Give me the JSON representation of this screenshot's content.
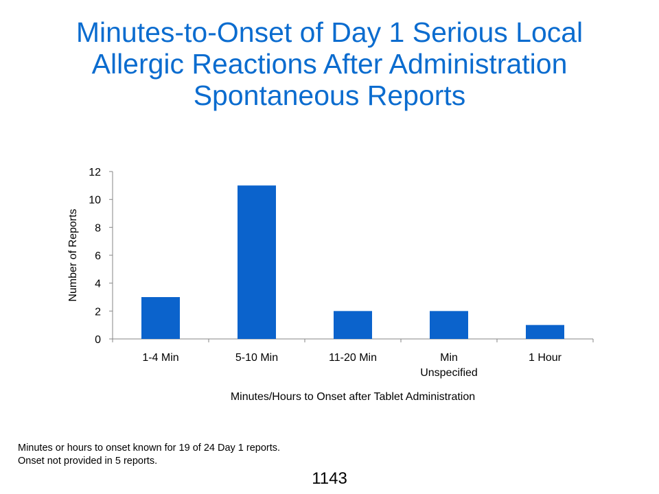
{
  "slide": {
    "title_lines": [
      "Minutes-to-Onset of Day 1 Serious Local",
      "Allergic Reactions After Administration",
      "Spontaneous Reports"
    ],
    "footnote_lines": [
      "Minutes or hours to onset known for 19 of  24 Day 1 reports.",
      "Onset not provided in 5 reports."
    ],
    "page_number": "1143"
  },
  "chart_data": {
    "type": "bar",
    "categories": [
      "1-4 Min",
      "5-10 Min",
      "11-20 Min",
      "Min Unspecified",
      "1 Hour"
    ],
    "category_label_lines": [
      [
        "1-4 Min"
      ],
      [
        "5-10 Min"
      ],
      [
        "11-20 Min"
      ],
      [
        "Min",
        "Unspecified"
      ],
      [
        "1 Hour"
      ]
    ],
    "values": [
      3,
      11,
      2,
      2,
      1
    ],
    "xlabel": "Minutes/Hours  to Onset  after Tablet Administration",
    "ylabel": "Number of Reports",
    "ylim": [
      0,
      12
    ],
    "yticks": [
      0,
      2,
      4,
      6,
      8,
      10,
      12
    ],
    "grid": false,
    "bar_color": "#0b63cc"
  }
}
